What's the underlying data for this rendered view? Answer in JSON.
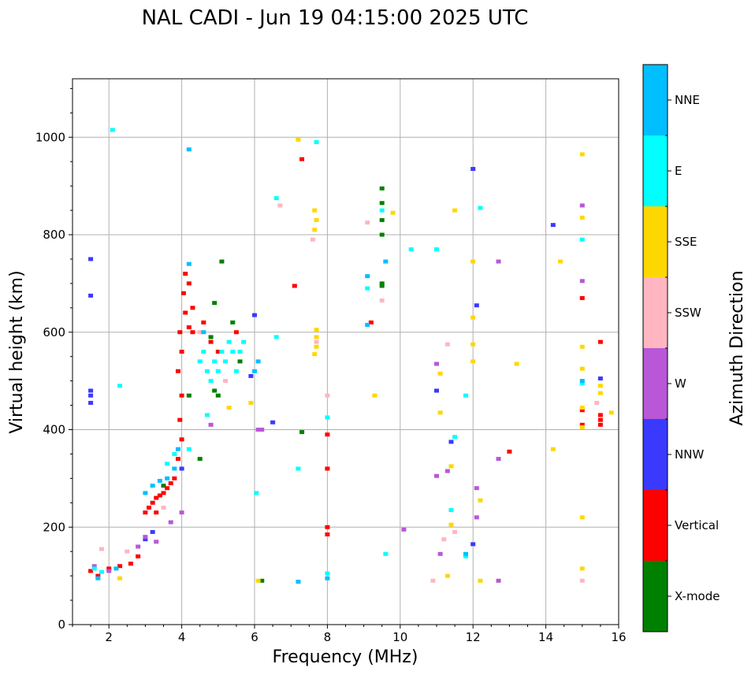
{
  "chart_data": {
    "type": "scatter",
    "title": "NAL CADI - Jun 19 04:15:00 2025 UTC",
    "xlabel": "Frequency (MHz)",
    "ylabel": "Virtual height (km)",
    "xlim": [
      1,
      16
    ],
    "ylim": [
      0,
      1120
    ],
    "xticks": [
      2,
      4,
      6,
      8,
      10,
      12,
      14,
      16
    ],
    "xtick_labels": [
      "2",
      "4",
      "6",
      "8",
      "10",
      "12",
      "14",
      "16"
    ],
    "yticks": [
      0,
      200,
      400,
      600,
      800,
      1000
    ],
    "ytick_labels": [
      "0",
      "200",
      "400",
      "600",
      "800",
      "1000"
    ],
    "grid": true,
    "colorbar": {
      "title": "Azimuth Direction",
      "categories": [
        {
          "name": "X-mode",
          "color": "#008000"
        },
        {
          "name": "Vertical",
          "color": "#ff0000"
        },
        {
          "name": "NNW",
          "color": "#3a3aff"
        },
        {
          "name": "W",
          "color": "#b857d8"
        },
        {
          "name": "SSW",
          "color": "#ffb6c1"
        },
        {
          "name": "SSE",
          "color": "#ffd700"
        },
        {
          "name": "E",
          "color": "#00ffff"
        },
        {
          "name": "NNE",
          "color": "#00bfff"
        }
      ]
    },
    "series": [
      {
        "name": "X-mode",
        "points": [
          [
            9.5,
            895
          ],
          [
            9.5,
            865
          ],
          [
            9.5,
            830
          ],
          [
            9.5,
            800
          ],
          [
            9.5,
            700
          ],
          [
            9.5,
            695
          ],
          [
            5.1,
            745
          ],
          [
            4.9,
            660
          ],
          [
            5.4,
            620
          ],
          [
            4.8,
            590
          ],
          [
            4.9,
            480
          ],
          [
            5.0,
            470
          ],
          [
            4.5,
            340
          ],
          [
            7.3,
            395
          ],
          [
            6.2,
            90
          ],
          [
            3.5,
            285
          ],
          [
            4.2,
            470
          ],
          [
            5.6,
            540
          ]
        ]
      },
      {
        "name": "Vertical",
        "points": [
          [
            1.5,
            110
          ],
          [
            1.7,
            100
          ],
          [
            2.0,
            115
          ],
          [
            2.3,
            120
          ],
          [
            2.6,
            125
          ],
          [
            2.8,
            140
          ],
          [
            3.0,
            230
          ],
          [
            3.1,
            240
          ],
          [
            3.2,
            250
          ],
          [
            3.3,
            260
          ],
          [
            3.4,
            265
          ],
          [
            3.5,
            270
          ],
          [
            3.6,
            280
          ],
          [
            3.7,
            290
          ],
          [
            3.8,
            300
          ],
          [
            3.9,
            340
          ],
          [
            4.0,
            380
          ],
          [
            3.95,
            420
          ],
          [
            4.0,
            470
          ],
          [
            3.9,
            520
          ],
          [
            4.0,
            560
          ],
          [
            3.95,
            600
          ],
          [
            4.1,
            640
          ],
          [
            4.05,
            680
          ],
          [
            4.1,
            720
          ],
          [
            4.2,
            700
          ],
          [
            4.3,
            650
          ],
          [
            4.2,
            610
          ],
          [
            7.3,
            955
          ],
          [
            7.1,
            695
          ],
          [
            8.0,
            390
          ],
          [
            8.0,
            320
          ],
          [
            8.0,
            200
          ],
          [
            8.0,
            185
          ],
          [
            9.2,
            620
          ],
          [
            13.0,
            355
          ],
          [
            15.0,
            670
          ],
          [
            15.0,
            440
          ],
          [
            15.0,
            410
          ],
          [
            15.5,
            430
          ],
          [
            15.5,
            420
          ],
          [
            15.5,
            410
          ],
          [
            15.5,
            580
          ],
          [
            4.3,
            600
          ],
          [
            4.6,
            620
          ],
          [
            4.8,
            580
          ],
          [
            5.0,
            560
          ],
          [
            5.5,
            600
          ],
          [
            3.3,
            230
          ]
        ]
      },
      {
        "name": "NNW",
        "points": [
          [
            1.5,
            480
          ],
          [
            1.5,
            470
          ],
          [
            1.5,
            455
          ],
          [
            1.5,
            750
          ],
          [
            1.5,
            675
          ],
          [
            3.0,
            175
          ],
          [
            3.2,
            190
          ],
          [
            4.0,
            320
          ],
          [
            6.5,
            415
          ],
          [
            11.0,
            480
          ],
          [
            11.4,
            375
          ],
          [
            12.0,
            935
          ],
          [
            12.1,
            655
          ],
          [
            12.0,
            165
          ],
          [
            14.2,
            820
          ],
          [
            15.5,
            505
          ],
          [
            6.0,
            635
          ],
          [
            5.9,
            510
          ]
        ]
      },
      {
        "name": "W",
        "points": [
          [
            1.6,
            120
          ],
          [
            2.0,
            110
          ],
          [
            2.8,
            160
          ],
          [
            3.0,
            180
          ],
          [
            3.3,
            170
          ],
          [
            3.7,
            210
          ],
          [
            4.0,
            230
          ],
          [
            6.1,
            400
          ],
          [
            6.2,
            400
          ],
          [
            11.0,
            535
          ],
          [
            11.0,
            305
          ],
          [
            11.3,
            315
          ],
          [
            12.1,
            280
          ],
          [
            12.1,
            220
          ],
          [
            12.7,
            745
          ],
          [
            12.7,
            340
          ],
          [
            12.7,
            90
          ],
          [
            15.0,
            860
          ],
          [
            15.0,
            705
          ],
          [
            10.1,
            195
          ],
          [
            11.1,
            145
          ],
          [
            4.8,
            410
          ]
        ]
      },
      {
        "name": "SSW",
        "points": [
          [
            1.8,
            155
          ],
          [
            2.5,
            150
          ],
          [
            3.5,
            240
          ],
          [
            6.7,
            860
          ],
          [
            7.6,
            790
          ],
          [
            7.7,
            580
          ],
          [
            8.0,
            470
          ],
          [
            9.1,
            825
          ],
          [
            9.5,
            665
          ],
          [
            10.9,
            90
          ],
          [
            11.2,
            175
          ],
          [
            11.3,
            575
          ],
          [
            11.5,
            190
          ],
          [
            15.0,
            90
          ],
          [
            15.4,
            455
          ],
          [
            4.5,
            600
          ],
          [
            5.2,
            500
          ]
        ]
      },
      {
        "name": "SSE",
        "points": [
          [
            2.3,
            95
          ],
          [
            7.2,
            995
          ],
          [
            7.65,
            850
          ],
          [
            7.7,
            830
          ],
          [
            7.65,
            810
          ],
          [
            7.7,
            605
          ],
          [
            7.7,
            590
          ],
          [
            7.7,
            570
          ],
          [
            7.65,
            555
          ],
          [
            9.3,
            470
          ],
          [
            9.8,
            845
          ],
          [
            11.1,
            515
          ],
          [
            11.1,
            435
          ],
          [
            11.3,
            100
          ],
          [
            11.4,
            205
          ],
          [
            11.4,
            325
          ],
          [
            11.5,
            850
          ],
          [
            12.0,
            745
          ],
          [
            12.0,
            630
          ],
          [
            12.0,
            575
          ],
          [
            12.0,
            540
          ],
          [
            12.2,
            255
          ],
          [
            12.2,
            90
          ],
          [
            13.2,
            535
          ],
          [
            14.2,
            360
          ],
          [
            14.4,
            745
          ],
          [
            15.0,
            965
          ],
          [
            15.0,
            835
          ],
          [
            15.0,
            570
          ],
          [
            15.0,
            525
          ],
          [
            15.0,
            445
          ],
          [
            15.0,
            405
          ],
          [
            15.0,
            220
          ],
          [
            15.0,
            115
          ],
          [
            15.5,
            490
          ],
          [
            15.5,
            475
          ],
          [
            15.8,
            435
          ],
          [
            6.1,
            90
          ],
          [
            5.9,
            455
          ],
          [
            5.3,
            445
          ]
        ]
      },
      {
        "name": "E",
        "points": [
          [
            1.6,
            115
          ],
          [
            1.8,
            108
          ],
          [
            2.1,
            1015
          ],
          [
            2.3,
            490
          ],
          [
            3.6,
            330
          ],
          [
            3.8,
            350
          ],
          [
            4.2,
            360
          ],
          [
            4.5,
            540
          ],
          [
            4.6,
            560
          ],
          [
            4.7,
            520
          ],
          [
            4.8,
            500
          ],
          [
            4.9,
            540
          ],
          [
            5.0,
            520
          ],
          [
            5.1,
            560
          ],
          [
            5.2,
            540
          ],
          [
            5.3,
            580
          ],
          [
            5.4,
            560
          ],
          [
            5.5,
            520
          ],
          [
            5.6,
            560
          ],
          [
            5.7,
            580
          ],
          [
            4.7,
            430
          ],
          [
            6.05,
            270
          ],
          [
            6.6,
            875
          ],
          [
            6.6,
            590
          ],
          [
            7.7,
            990
          ],
          [
            7.2,
            320
          ],
          [
            8.0,
            425
          ],
          [
            8.0,
            105
          ],
          [
            9.1,
            690
          ],
          [
            9.5,
            850
          ],
          [
            9.6,
            145
          ],
          [
            10.3,
            770
          ],
          [
            11.0,
            770
          ],
          [
            11.8,
            470
          ],
          [
            11.5,
            385
          ],
          [
            11.8,
            140
          ],
          [
            15.0,
            495
          ],
          [
            15.0,
            790
          ],
          [
            12.2,
            855
          ],
          [
            11.4,
            235
          ]
        ]
      },
      {
        "name": "NNE",
        "points": [
          [
            1.7,
            95
          ],
          [
            3.0,
            270
          ],
          [
            3.2,
            285
          ],
          [
            3.4,
            295
          ],
          [
            3.6,
            300
          ],
          [
            3.8,
            320
          ],
          [
            3.9,
            360
          ],
          [
            4.2,
            975
          ],
          [
            4.2,
            740
          ],
          [
            4.6,
            600
          ],
          [
            6.1,
            540
          ],
          [
            6.0,
            520
          ],
          [
            7.2,
            88
          ],
          [
            8.0,
            95
          ],
          [
            9.1,
            715
          ],
          [
            9.1,
            615
          ],
          [
            9.6,
            745
          ],
          [
            11.8,
            145
          ],
          [
            15.0,
            500
          ],
          [
            2.2,
            115
          ]
        ]
      }
    ]
  }
}
